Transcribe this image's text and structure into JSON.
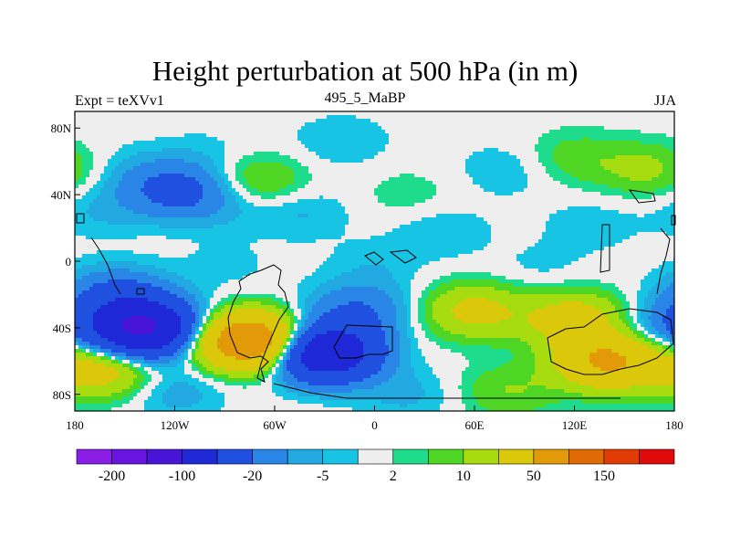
{
  "chart_data": {
    "type": "heatmap",
    "title": "Height perturbation at 500 hPa (in m)",
    "left_string": "Expt = teXVv1",
    "center_string": "495_5_MaBP",
    "right_string": "JJA",
    "x_ticks": [
      "180",
      "120W",
      "60W",
      "0",
      "60E",
      "120E",
      "180"
    ],
    "y_ticks": [
      "80N",
      "40N",
      "0",
      "40S",
      "80S"
    ],
    "x_range": [
      -180,
      180
    ],
    "y_range": [
      -90,
      90
    ],
    "colorbar": {
      "colors": [
        "#8a1ee6",
        "#6a14e0",
        "#4814d8",
        "#1e28d6",
        "#1f50e0",
        "#2a86e6",
        "#22a9e2",
        "#17c4e4",
        "#eeeeee",
        "#1fdc8c",
        "#4fd624",
        "#a6dc10",
        "#dcc80a",
        "#e29a08",
        "#e06a04",
        "#e03c04",
        "#e00a0a"
      ],
      "labels": [
        "-200",
        "-100",
        "-20",
        "-5",
        "2",
        "10",
        "50",
        "150"
      ]
    },
    "blobs": [
      {
        "lon": -150,
        "lat": 55,
        "value": -4
      },
      {
        "lon": -165,
        "lat": 30,
        "value": -5
      },
      {
        "lon": -120,
        "lat": 43,
        "value": -25
      },
      {
        "lon": -95,
        "lat": 35,
        "value": -6
      },
      {
        "lon": -70,
        "lat": 48,
        "value": 12
      },
      {
        "lon": -20,
        "lat": 72,
        "value": -5
      },
      {
        "lon": -45,
        "lat": 30,
        "value": -6
      },
      {
        "lon": -100,
        "lat": 65,
        "value": -3
      },
      {
        "lon": 20,
        "lat": 40,
        "value": 4
      },
      {
        "lon": 80,
        "lat": 55,
        "value": -5
      },
      {
        "lon": 120,
        "lat": 62,
        "value": 8
      },
      {
        "lon": 165,
        "lat": 55,
        "value": 12
      },
      {
        "lon": 130,
        "lat": 22,
        "value": -4
      },
      {
        "lon": 40,
        "lat": 18,
        "value": -5
      },
      {
        "lon": 0,
        "lat": -3,
        "value": -4
      },
      {
        "lon": -90,
        "lat": -3,
        "value": -3
      },
      {
        "lon": 100,
        "lat": -5,
        "value": -3
      },
      {
        "lon": -140,
        "lat": -40,
        "value": -110
      },
      {
        "lon": -155,
        "lat": -20,
        "value": -22
      },
      {
        "lon": -75,
        "lat": -48,
        "value": 90
      },
      {
        "lon": -30,
        "lat": -55,
        "value": -90
      },
      {
        "lon": -10,
        "lat": -30,
        "value": -20
      },
      {
        "lon": 60,
        "lat": -30,
        "value": 25
      },
      {
        "lon": 120,
        "lat": -35,
        "value": 30
      },
      {
        "lon": 140,
        "lat": -60,
        "value": 55
      },
      {
        "lon": 170,
        "lat": -40,
        "value": -12
      },
      {
        "lon": -165,
        "lat": -65,
        "value": 30
      },
      {
        "lon": -120,
        "lat": -78,
        "value": -8
      },
      {
        "lon": 20,
        "lat": -80,
        "value": -6
      },
      {
        "lon": 80,
        "lat": -78,
        "value": 10
      }
    ]
  }
}
